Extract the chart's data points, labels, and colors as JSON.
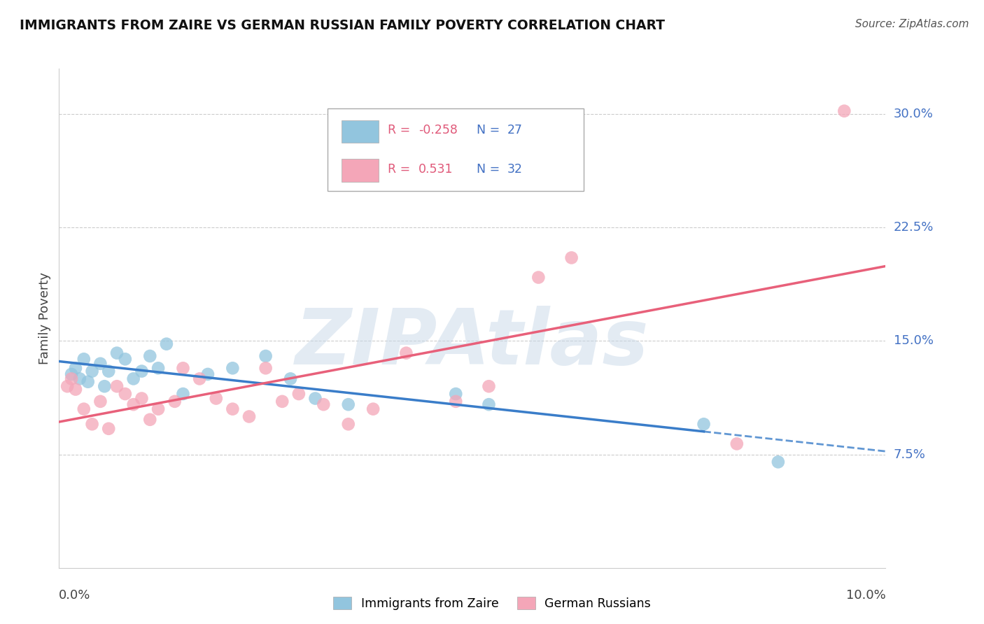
{
  "title": "IMMIGRANTS FROM ZAIRE VS GERMAN RUSSIAN FAMILY POVERTY CORRELATION CHART",
  "source": "Source: ZipAtlas.com",
  "ylabel": "Family Poverty",
  "y_ticks": [
    7.5,
    15.0,
    22.5,
    30.0
  ],
  "x_range": [
    0.0,
    10.0
  ],
  "y_range": [
    0.0,
    33.0
  ],
  "blue_R": "-0.258",
  "blue_N": "27",
  "pink_R": "0.531",
  "pink_N": "32",
  "blue_color": "#92c5de",
  "pink_color": "#f4a6b8",
  "blue_line_color": "#3a7dc9",
  "pink_line_color": "#e8607a",
  "watermark": "ZIPAtlas",
  "blue_scatter_x": [
    0.15,
    0.2,
    0.25,
    0.3,
    0.35,
    0.4,
    0.5,
    0.55,
    0.6,
    0.7,
    0.8,
    0.9,
    1.0,
    1.1,
    1.2,
    1.3,
    1.5,
    1.8,
    2.1,
    2.5,
    2.8,
    3.1,
    3.5,
    4.8,
    5.2,
    7.8,
    8.7
  ],
  "blue_scatter_y": [
    12.8,
    13.2,
    12.5,
    13.8,
    12.3,
    13.0,
    13.5,
    12.0,
    13.0,
    14.2,
    13.8,
    12.5,
    13.0,
    14.0,
    13.2,
    14.8,
    11.5,
    12.8,
    13.2,
    14.0,
    12.5,
    11.2,
    10.8,
    11.5,
    10.8,
    9.5,
    7.0
  ],
  "pink_scatter_x": [
    0.1,
    0.15,
    0.2,
    0.3,
    0.4,
    0.5,
    0.6,
    0.7,
    0.8,
    0.9,
    1.0,
    1.1,
    1.2,
    1.4,
    1.5,
    1.7,
    1.9,
    2.1,
    2.3,
    2.5,
    2.7,
    2.9,
    3.2,
    3.5,
    3.8,
    4.2,
    4.8,
    5.2,
    5.8,
    6.2,
    8.2,
    9.5
  ],
  "pink_scatter_y": [
    12.0,
    12.5,
    11.8,
    10.5,
    9.5,
    11.0,
    9.2,
    12.0,
    11.5,
    10.8,
    11.2,
    9.8,
    10.5,
    11.0,
    13.2,
    12.5,
    11.2,
    10.5,
    10.0,
    13.2,
    11.0,
    11.5,
    10.8,
    9.5,
    10.5,
    14.2,
    11.0,
    12.0,
    19.2,
    20.5,
    8.2,
    30.2
  ],
  "blue_solid_x_end": 7.8,
  "pink_line_y_at_0": 7.2,
  "pink_line_y_at_10": 20.5
}
